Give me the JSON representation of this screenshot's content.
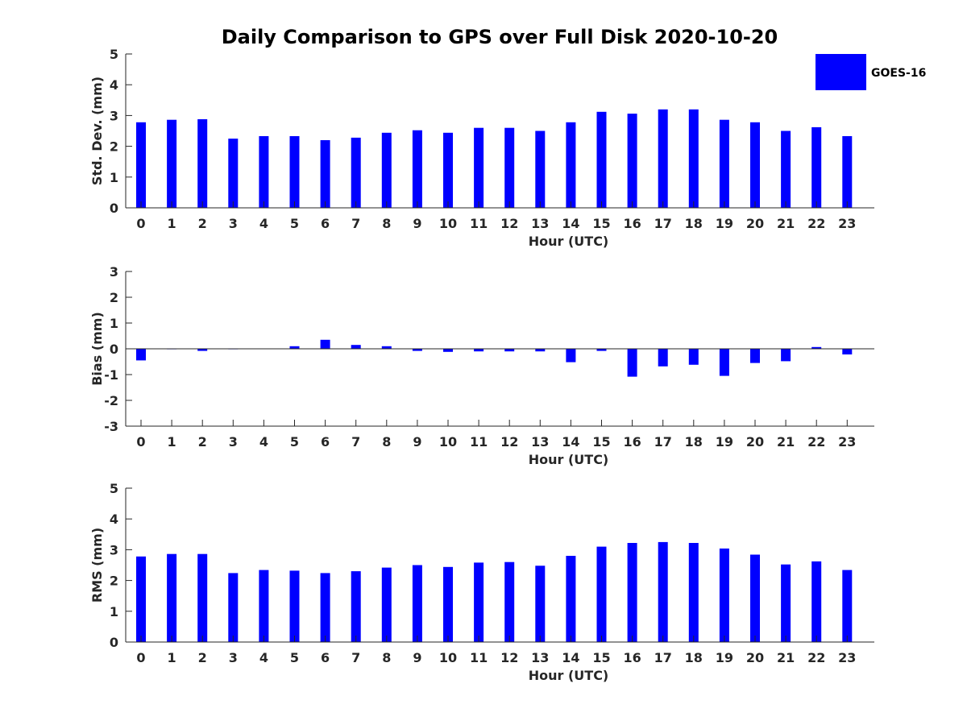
{
  "title": "Daily Comparison to GPS over Full Disk 2020-10-20",
  "legend": {
    "label": "GOES-16",
    "color": "#0000ff"
  },
  "chart_data": [
    {
      "type": "bar",
      "name": "std-dev",
      "ylabel": "Std. Dev. (mm)",
      "xlabel": "Hour (UTC)",
      "ylim": [
        0,
        5
      ],
      "yticks": [
        0,
        1,
        2,
        3,
        4,
        5
      ],
      "categories": [
        "0",
        "1",
        "2",
        "3",
        "4",
        "5",
        "6",
        "7",
        "8",
        "9",
        "10",
        "11",
        "12",
        "13",
        "14",
        "15",
        "16",
        "17",
        "18",
        "19",
        "20",
        "21",
        "22",
        "23"
      ],
      "values": [
        2.78,
        2.86,
        2.88,
        2.25,
        2.33,
        2.33,
        2.2,
        2.28,
        2.44,
        2.52,
        2.44,
        2.6,
        2.6,
        2.5,
        2.78,
        3.12,
        3.06,
        3.2,
        3.2,
        2.86,
        2.78,
        2.5,
        2.62,
        2.33
      ]
    },
    {
      "type": "bar",
      "name": "bias",
      "ylabel": "Bias (mm)",
      "xlabel": "Hour (UTC)",
      "ylim": [
        -3,
        3
      ],
      "yticks": [
        -3,
        -2,
        -1,
        0,
        1,
        2,
        3
      ],
      "categories": [
        "0",
        "1",
        "2",
        "3",
        "4",
        "5",
        "6",
        "7",
        "8",
        "9",
        "10",
        "11",
        "12",
        "13",
        "14",
        "15",
        "16",
        "17",
        "18",
        "19",
        "20",
        "21",
        "22",
        "23"
      ],
      "values": [
        -0.45,
        -0.02,
        -0.08,
        -0.02,
        0.0,
        0.1,
        0.35,
        0.15,
        0.1,
        -0.08,
        -0.12,
        -0.1,
        -0.1,
        -0.1,
        -0.52,
        -0.08,
        -1.08,
        -0.68,
        -0.62,
        -1.05,
        -0.55,
        -0.48,
        0.07,
        -0.22
      ]
    },
    {
      "type": "bar",
      "name": "rms",
      "ylabel": "RMS (mm)",
      "xlabel": "Hour (UTC)",
      "ylim": [
        0,
        5
      ],
      "yticks": [
        0,
        1,
        2,
        3,
        4,
        5
      ],
      "categories": [
        "0",
        "1",
        "2",
        "3",
        "4",
        "5",
        "6",
        "7",
        "8",
        "9",
        "10",
        "11",
        "12",
        "13",
        "14",
        "15",
        "16",
        "17",
        "18",
        "19",
        "20",
        "21",
        "22",
        "23"
      ],
      "values": [
        2.78,
        2.86,
        2.86,
        2.24,
        2.34,
        2.32,
        2.24,
        2.3,
        2.42,
        2.5,
        2.44,
        2.58,
        2.6,
        2.48,
        2.8,
        3.1,
        3.22,
        3.25,
        3.22,
        3.04,
        2.84,
        2.52,
        2.62,
        2.34
      ]
    }
  ]
}
